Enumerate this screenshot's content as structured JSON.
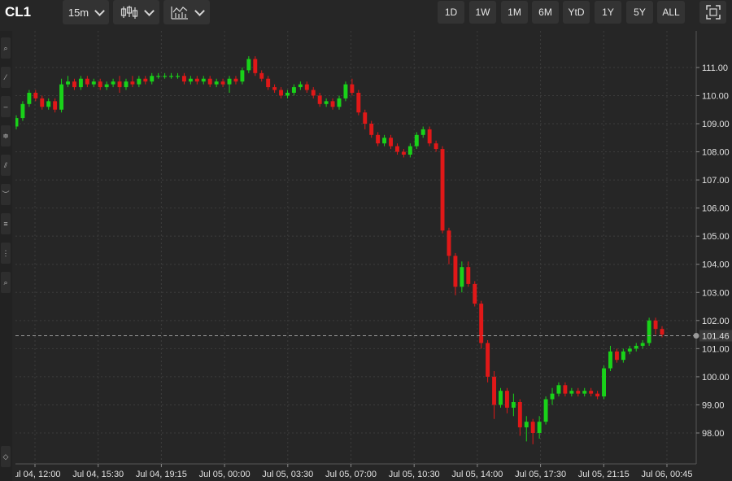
{
  "header": {
    "symbol": "CL1",
    "interval_label": "15m",
    "range_buttons": [
      "1D",
      "1W",
      "1M",
      "6M",
      "YtD",
      "1Y",
      "5Y",
      "ALL"
    ]
  },
  "colors": {
    "up": "#19d219",
    "down": "#e01818",
    "background": "#262626",
    "grid": "#3c3c3c"
  },
  "icons": {
    "chart_type": "candlestick-icon",
    "indicators": "indicators-icon",
    "fullscreen": "fullscreen-icon"
  },
  "chart_data": {
    "type": "candlestick",
    "y_ticks": [
      "111.00",
      "110.00",
      "109.00",
      "108.00",
      "107.00",
      "106.00",
      "105.00",
      "104.00",
      "103.00",
      "102.00",
      "101.00",
      "100.00",
      "99.00",
      "98.00"
    ],
    "y_tick_values": [
      111,
      110,
      109,
      108,
      107,
      106,
      105,
      104,
      103,
      102,
      101,
      100,
      99,
      98
    ],
    "ylim": [
      96.9,
      112.3
    ],
    "x_ticks": [
      "Jul 04, 12:00",
      "Jul 04, 15:30",
      "Jul 04, 19:15",
      "Jul 05, 00:00",
      "Jul 05, 03:30",
      "Jul 05, 07:00",
      "Jul 05, 10:30",
      "Jul 05, 14:00",
      "Jul 05, 17:30",
      "Jul 05, 21:15",
      "Jul 06, 00:45"
    ],
    "last_price": 101.46,
    "last_price_label": "101.46",
    "grid": true,
    "candles": [
      [
        108.9,
        109.2,
        108.8,
        109.3
      ],
      [
        109.2,
        109.7,
        109.1,
        109.8
      ],
      [
        109.7,
        110.1,
        109.6,
        110.2
      ],
      [
        110.1,
        109.9,
        109.8,
        110.2
      ],
      [
        109.9,
        109.6,
        109.5,
        110.0
      ],
      [
        109.6,
        109.8,
        109.5,
        109.9
      ],
      [
        109.8,
        109.5,
        109.4,
        109.9
      ],
      [
        109.5,
        110.4,
        109.4,
        110.6
      ],
      [
        110.4,
        110.5,
        110.3,
        110.7
      ],
      [
        110.5,
        110.3,
        110.2,
        110.6
      ],
      [
        110.3,
        110.6,
        110.2,
        110.7
      ],
      [
        110.6,
        110.4,
        110.3,
        110.7
      ],
      [
        110.4,
        110.5,
        110.3,
        110.6
      ],
      [
        110.5,
        110.3,
        110.2,
        110.6
      ],
      [
        110.3,
        110.4,
        110.2,
        110.5
      ],
      [
        110.4,
        110.5,
        110.3,
        110.6
      ],
      [
        110.5,
        110.3,
        110.1,
        110.7
      ],
      [
        110.3,
        110.5,
        110.2,
        110.6
      ],
      [
        110.5,
        110.4,
        110.3,
        110.7
      ],
      [
        110.4,
        110.6,
        110.3,
        110.7
      ],
      [
        110.6,
        110.5,
        110.4,
        110.7
      ],
      [
        110.5,
        110.7,
        110.4,
        110.8
      ],
      [
        110.7,
        110.7,
        110.6,
        110.8
      ],
      [
        110.7,
        110.7,
        110.6,
        110.8
      ],
      [
        110.7,
        110.7,
        110.6,
        110.8
      ],
      [
        110.7,
        110.7,
        110.6,
        110.8
      ],
      [
        110.7,
        110.5,
        110.4,
        110.8
      ],
      [
        110.5,
        110.6,
        110.4,
        110.7
      ],
      [
        110.6,
        110.5,
        110.4,
        110.7
      ],
      [
        110.5,
        110.6,
        110.4,
        110.7
      ],
      [
        110.6,
        110.4,
        110.3,
        110.7
      ],
      [
        110.4,
        110.5,
        110.3,
        110.6
      ],
      [
        110.5,
        110.4,
        110.3,
        110.6
      ],
      [
        110.4,
        110.6,
        110.1,
        110.7
      ],
      [
        110.6,
        110.5,
        110.4,
        110.7
      ],
      [
        110.5,
        110.9,
        110.4,
        111.0
      ],
      [
        110.9,
        111.3,
        110.8,
        111.4
      ],
      [
        111.3,
        110.8,
        110.7,
        111.4
      ],
      [
        110.8,
        110.6,
        110.5,
        110.9
      ],
      [
        110.6,
        110.3,
        110.2,
        110.7
      ],
      [
        110.3,
        110.2,
        110.1,
        110.4
      ],
      [
        110.2,
        110.0,
        109.9,
        110.3
      ],
      [
        110.0,
        110.1,
        109.9,
        110.2
      ],
      [
        110.1,
        110.3,
        110.0,
        110.4
      ],
      [
        110.3,
        110.4,
        110.2,
        110.5
      ],
      [
        110.4,
        110.2,
        110.1,
        110.5
      ],
      [
        110.2,
        110.0,
        109.9,
        110.3
      ],
      [
        110.0,
        109.7,
        109.6,
        110.1
      ],
      [
        109.7,
        109.8,
        109.6,
        109.9
      ],
      [
        109.8,
        109.6,
        109.5,
        109.9
      ],
      [
        109.6,
        109.9,
        109.5,
        110.0
      ],
      [
        109.9,
        110.4,
        109.8,
        110.5
      ],
      [
        110.4,
        110.1,
        110.0,
        110.6
      ],
      [
        110.1,
        109.4,
        109.3,
        110.2
      ],
      [
        109.4,
        109.0,
        108.8,
        109.5
      ],
      [
        109.0,
        108.6,
        108.5,
        109.1
      ],
      [
        108.6,
        108.3,
        108.2,
        108.7
      ],
      [
        108.3,
        108.5,
        108.2,
        108.6
      ],
      [
        108.5,
        108.2,
        108.1,
        108.6
      ],
      [
        108.2,
        108.0,
        107.9,
        108.3
      ],
      [
        108.0,
        107.9,
        107.8,
        108.1
      ],
      [
        107.9,
        108.2,
        107.8,
        108.3
      ],
      [
        108.2,
        108.6,
        108.1,
        108.7
      ],
      [
        108.6,
        108.8,
        108.5,
        108.9
      ],
      [
        108.8,
        108.3,
        108.2,
        108.9
      ],
      [
        108.3,
        108.1,
        108.0,
        108.4
      ],
      [
        108.1,
        105.2,
        105.1,
        108.2
      ],
      [
        105.2,
        104.3,
        104.0,
        105.3
      ],
      [
        104.3,
        103.2,
        102.9,
        104.4
      ],
      [
        103.2,
        103.9,
        103.0,
        104.1
      ],
      [
        103.9,
        103.3,
        103.2,
        104.1
      ],
      [
        103.3,
        102.6,
        102.5,
        103.4
      ],
      [
        102.6,
        101.2,
        101.0,
        102.7
      ],
      [
        101.2,
        100.0,
        99.8,
        101.3
      ],
      [
        100.0,
        99.0,
        98.5,
        100.2
      ],
      [
        99.0,
        99.5,
        98.9,
        99.6
      ],
      [
        99.5,
        98.9,
        98.7,
        99.6
      ],
      [
        98.9,
        99.1,
        98.6,
        99.4
      ],
      [
        99.1,
        98.2,
        97.9,
        99.2
      ],
      [
        98.2,
        98.4,
        97.7,
        98.6
      ],
      [
        98.4,
        98.0,
        97.6,
        98.5
      ],
      [
        98.0,
        98.4,
        97.8,
        98.6
      ],
      [
        98.4,
        99.2,
        98.3,
        99.3
      ],
      [
        99.2,
        99.4,
        99.0,
        99.6
      ],
      [
        99.4,
        99.7,
        99.3,
        99.8
      ],
      [
        99.7,
        99.4,
        99.3,
        99.8
      ],
      [
        99.4,
        99.5,
        99.3,
        99.6
      ],
      [
        99.5,
        99.4,
        99.3,
        99.6
      ],
      [
        99.4,
        99.5,
        99.3,
        99.6
      ],
      [
        99.5,
        99.4,
        99.3,
        99.6
      ],
      [
        99.4,
        99.3,
        99.2,
        99.5
      ],
      [
        99.3,
        100.3,
        99.2,
        100.4
      ],
      [
        100.3,
        100.9,
        100.2,
        101.1
      ],
      [
        100.9,
        100.6,
        100.5,
        101.0
      ],
      [
        100.6,
        100.9,
        100.5,
        101.0
      ],
      [
        100.9,
        101.0,
        100.8,
        101.1
      ],
      [
        101.0,
        101.1,
        100.9,
        101.2
      ],
      [
        101.1,
        101.2,
        101.0,
        101.3
      ],
      [
        101.2,
        102.0,
        101.1,
        102.1
      ],
      [
        102.0,
        101.7,
        101.5,
        102.1
      ],
      [
        101.7,
        101.5,
        101.4,
        101.8
      ]
    ]
  }
}
